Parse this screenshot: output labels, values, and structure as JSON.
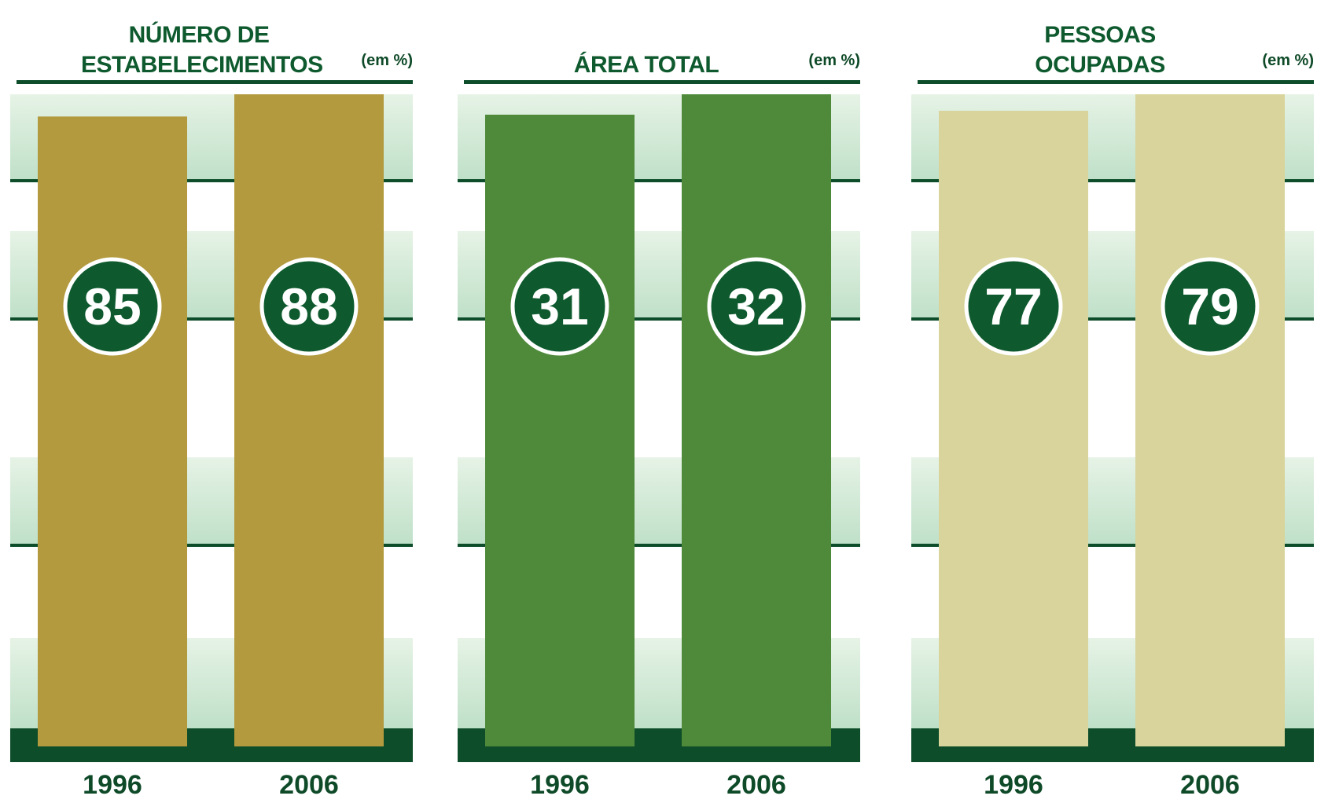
{
  "chart_data": [
    {
      "type": "bar",
      "title": "NÚMERO DE ESTABELECIMENTOS",
      "unit": "(em %)",
      "categories": [
        "1996",
        "2006"
      ],
      "values": [
        85,
        88
      ],
      "color": "#b39a3e"
    },
    {
      "type": "bar",
      "title": "ÁREA TOTAL",
      "unit": "(em %)",
      "categories": [
        "1996",
        "2006"
      ],
      "values": [
        31,
        32
      ],
      "color": "#4f8a3b"
    },
    {
      "type": "bar",
      "title": "PESSOAS OCUPADAS",
      "unit": "(em %)",
      "categories": [
        "1996",
        "2006"
      ],
      "values": [
        77,
        79
      ],
      "color": "#d8d49b"
    }
  ]
}
